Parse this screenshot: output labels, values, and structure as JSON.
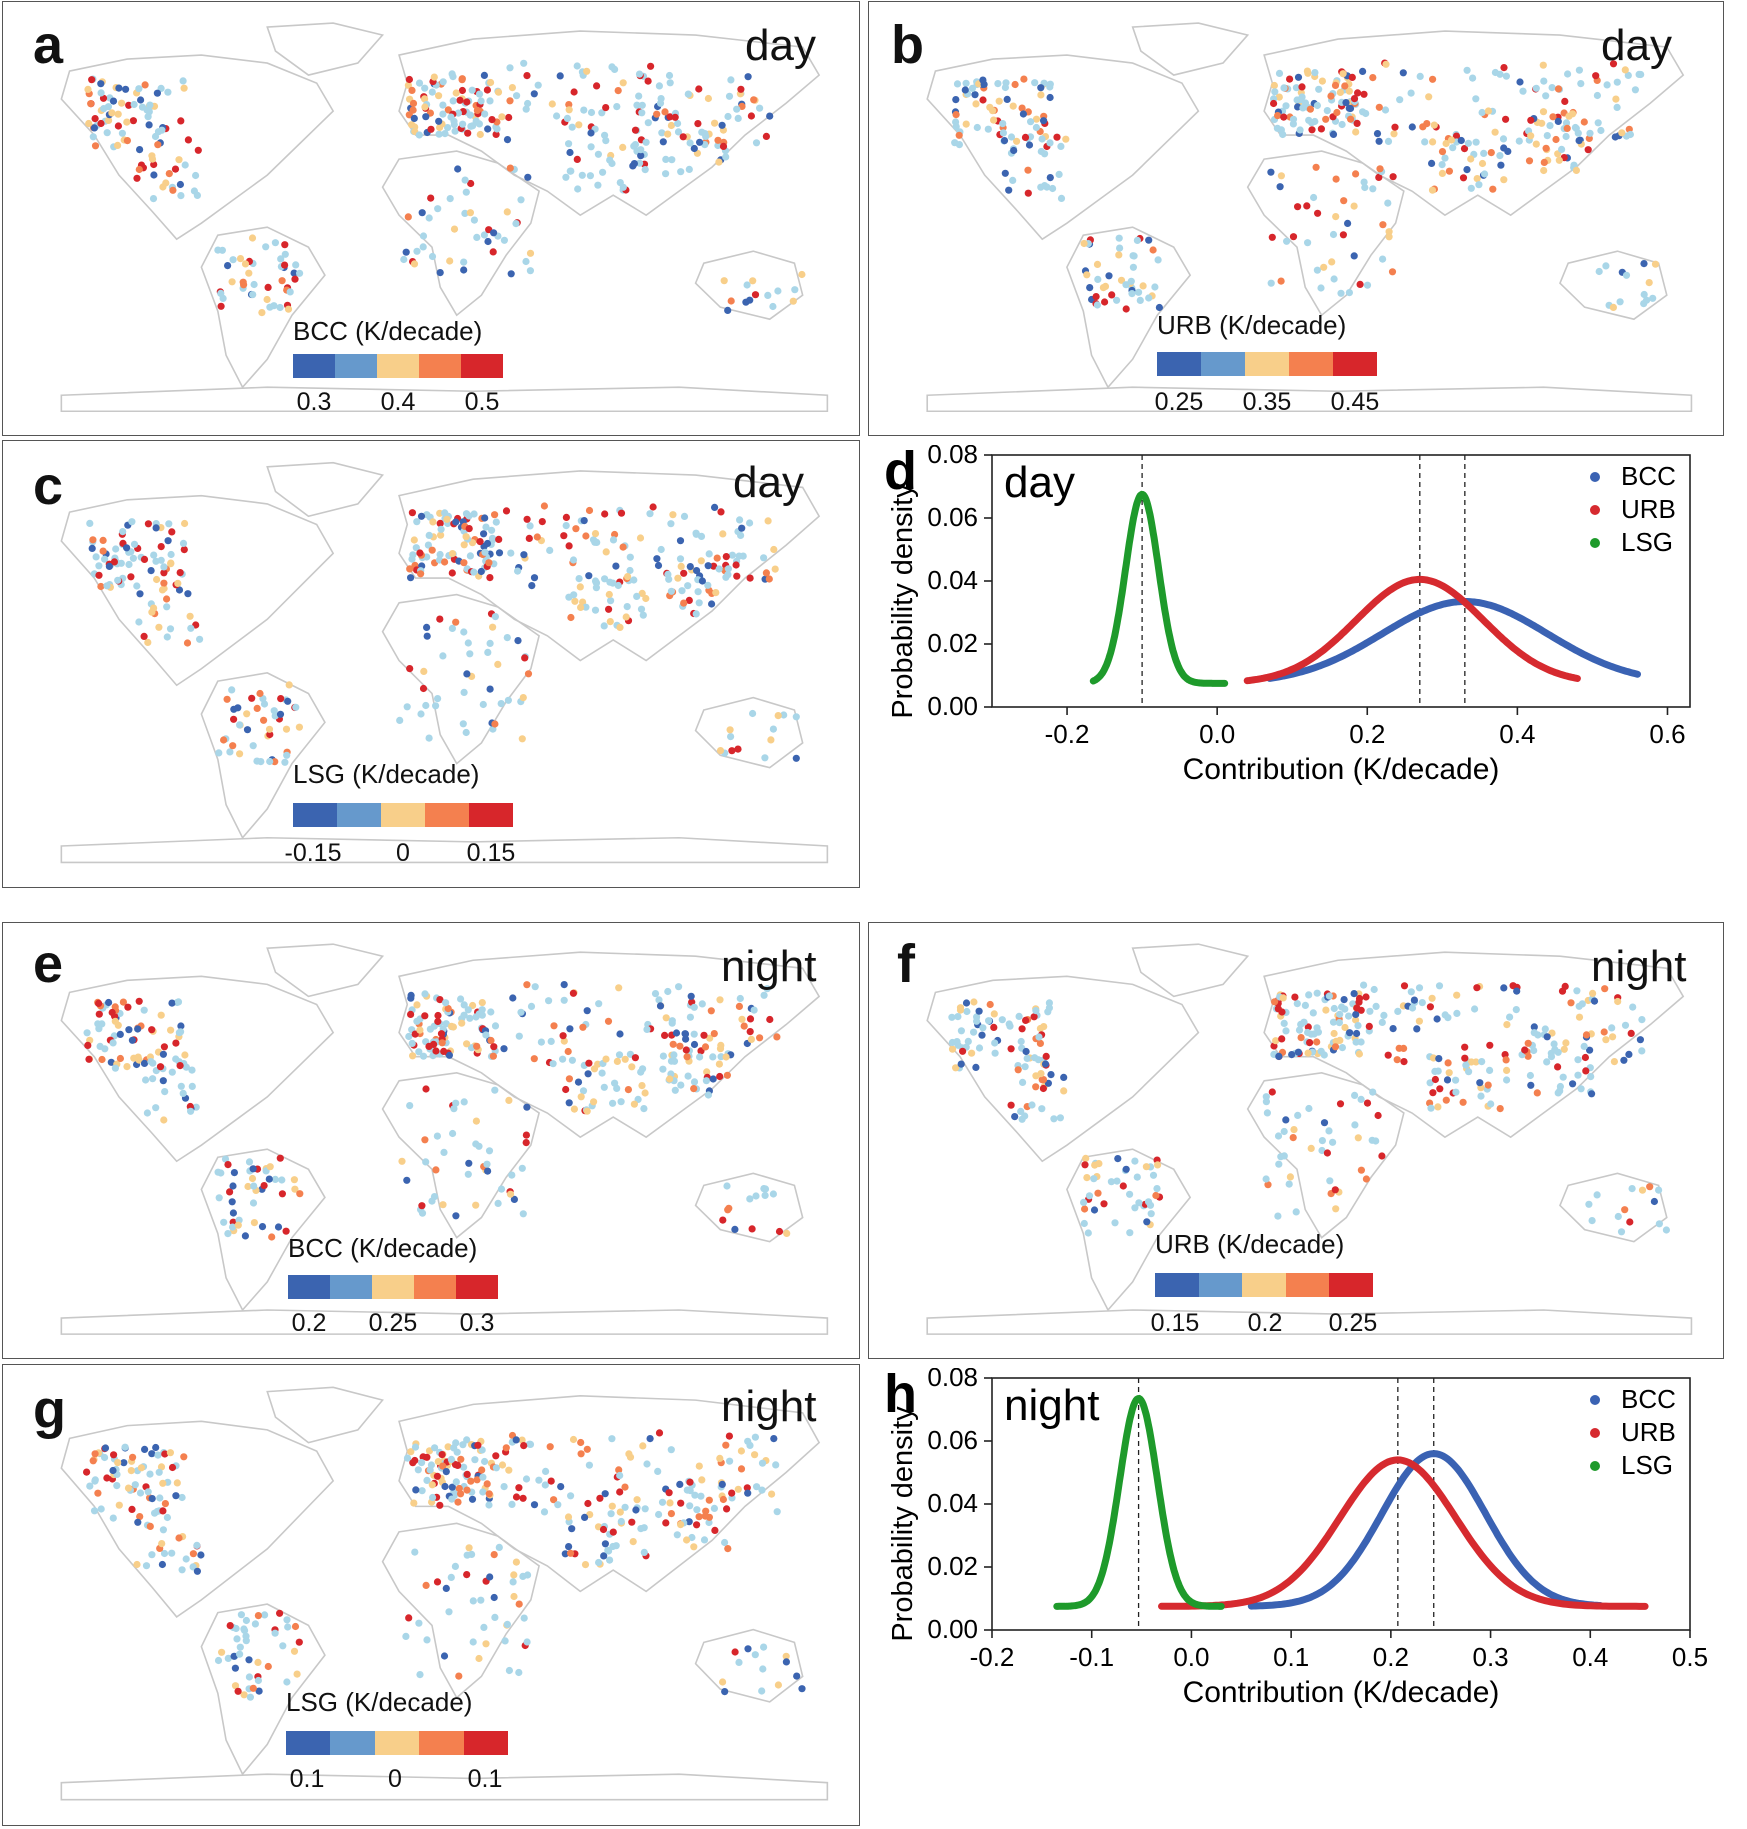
{
  "colors": {
    "c1": "#3b64b0",
    "c2": "#6699cc",
    "c3": "#f8cf8a",
    "c4": "#f4804f",
    "c5": "#d7262b",
    "light": "#a9d6e8",
    "land": "#c8c8c8",
    "BCC": "#3a62b3",
    "URB": "#d62a2f",
    "LSG": "#1e9a2b"
  },
  "maps": [
    {
      "label": "a",
      "time": "day",
      "cbar_title": "BCC (K/decade)",
      "ticks": [
        "0.3",
        "0.4",
        "0.5"
      ],
      "seed": 11
    },
    {
      "label": "b",
      "time": "day",
      "cbar_title": "URB (K/decade)",
      "ticks": [
        "0.25",
        "0.35",
        "0.45"
      ],
      "seed": 23
    },
    {
      "label": "c",
      "time": "day",
      "cbar_title": "LSG (K/decade)",
      "ticks": [
        "-0.15",
        "0",
        "0.15"
      ],
      "seed": 37
    },
    {
      "label": "e",
      "time": "night",
      "cbar_title": "BCC (K/decade)",
      "ticks": [
        "0.2",
        "0.25",
        "0.3"
      ],
      "seed": 51
    },
    {
      "label": "f",
      "time": "night",
      "cbar_title": "URB (K/decade)",
      "ticks": [
        "0.15",
        "0.2",
        "0.25"
      ],
      "seed": 67
    },
    {
      "label": "g",
      "time": "night",
      "cbar_title": "LSG (K/decade)",
      "ticks": [
        "0.1",
        "0",
        "0.1"
      ],
      "seed": 79
    }
  ],
  "chart_data": [
    {
      "type": "line",
      "label": "d",
      "time": "day",
      "xlabel": "Contribution (K/decade)",
      "ylabel": "Probability density",
      "xlim": [
        -0.3,
        0.63
      ],
      "ylim": [
        0,
        0.08
      ],
      "xticks": [
        "-0.2",
        "0.0",
        "0.2",
        "0.4",
        "0.6"
      ],
      "yticks": [
        "0.00",
        "0.02",
        "0.04",
        "0.06",
        "0.08"
      ],
      "legend": "top-right",
      "series": [
        {
          "name": "BCC",
          "mean": 0.33,
          "peak": 0.0335,
          "sd": 0.11,
          "base": 0.0075,
          "xmin": 0.07,
          "xmax": 0.56
        },
        {
          "name": "URB",
          "mean": 0.27,
          "peak": 0.0405,
          "sd": 0.085,
          "base": 0.0075,
          "xmin": 0.04,
          "xmax": 0.48
        },
        {
          "name": "LSG",
          "mean": -0.1,
          "peak": 0.0675,
          "sd": 0.022,
          "base": 0.0075,
          "xmin": -0.165,
          "xmax": 0.01
        }
      ],
      "vlines": [
        -0.1,
        0.27,
        0.33
      ]
    },
    {
      "type": "line",
      "label": "h",
      "time": "night",
      "xlabel": "Contribution (K/decade)",
      "ylabel": "Probability density",
      "xlim": [
        -0.2,
        0.5
      ],
      "ylim": [
        0,
        0.08
      ],
      "xticks": [
        "-0.2",
        "-0.1",
        "0.0",
        "0.1",
        "0.2",
        "0.3",
        "0.4",
        "0.5"
      ],
      "yticks": [
        "0.00",
        "0.02",
        "0.04",
        "0.06",
        "0.08"
      ],
      "legend": "top-right",
      "series": [
        {
          "name": "BCC",
          "mean": 0.243,
          "peak": 0.056,
          "sd": 0.052,
          "base": 0.0075,
          "xmin": 0.06,
          "xmax": 0.41
        },
        {
          "name": "URB",
          "mean": 0.207,
          "peak": 0.054,
          "sd": 0.058,
          "base": 0.0075,
          "xmin": -0.03,
          "xmax": 0.455
        },
        {
          "name": "LSG",
          "mean": -0.053,
          "peak": 0.0735,
          "sd": 0.019,
          "base": 0.0075,
          "xmin": -0.135,
          "xmax": 0.03
        }
      ],
      "vlines": [
        -0.053,
        0.207,
        0.243
      ]
    }
  ]
}
